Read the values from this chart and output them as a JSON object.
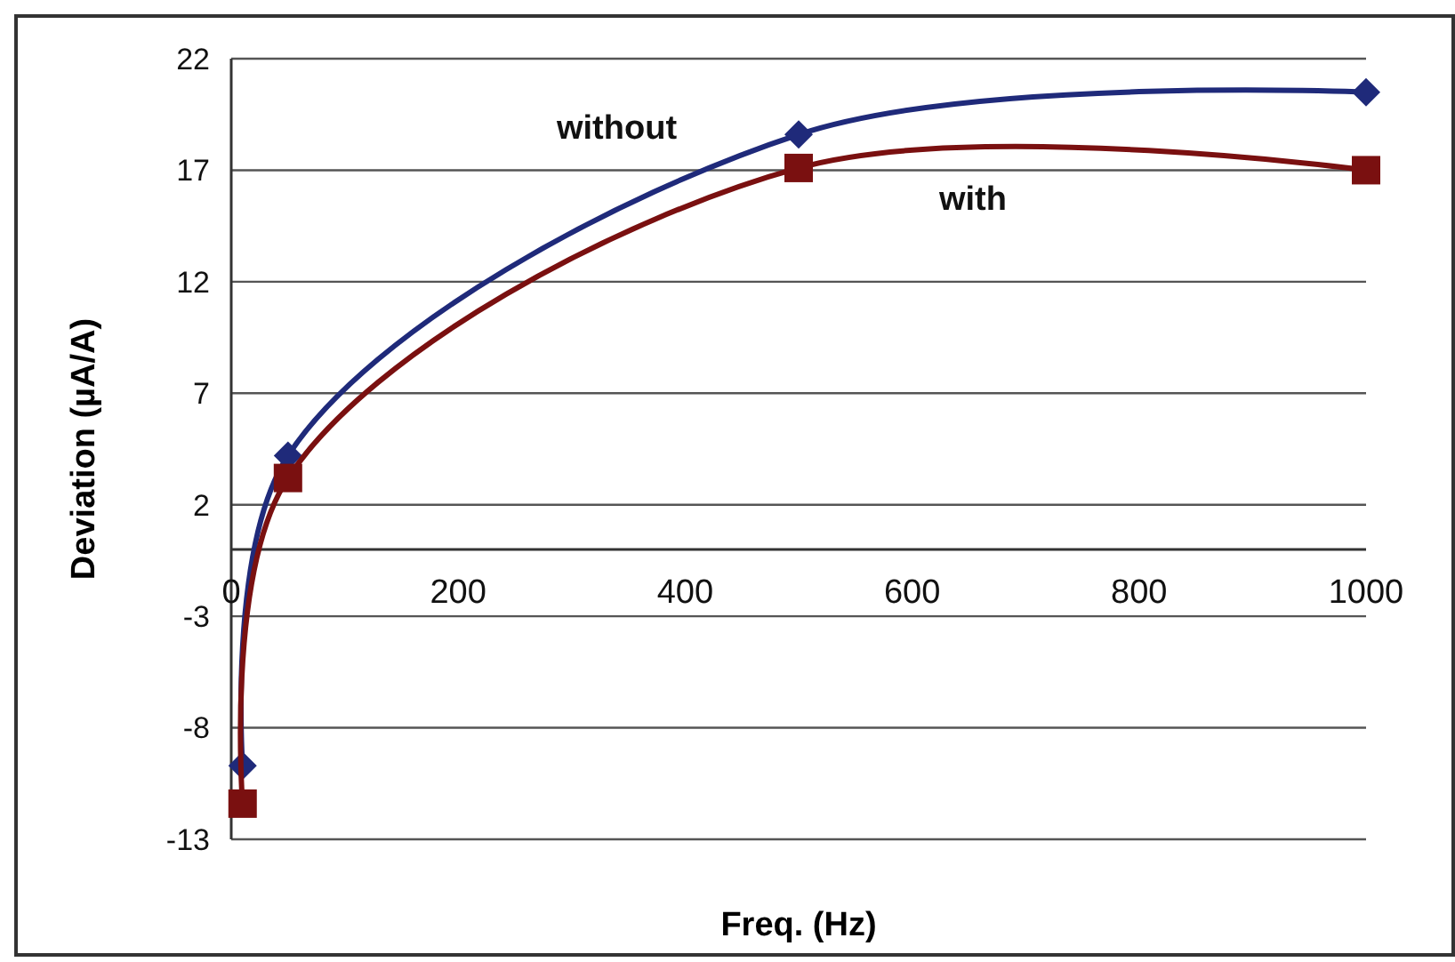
{
  "chart_data": {
    "type": "line",
    "xlabel": "Freq. (Hz)",
    "ylabel": "Deviation (µA/A)",
    "x": [
      10,
      50,
      500,
      1000
    ],
    "series": [
      {
        "name": "without",
        "color": "#1f2a7a",
        "values": [
          -9.7,
          4.2,
          18.6,
          20.5
        ],
        "marker": "diamond"
      },
      {
        "name": "with",
        "color": "#7a1010",
        "values": [
          -11.4,
          3.2,
          17.1,
          17.0
        ],
        "marker": "square"
      }
    ],
    "xlim": [
      0,
      1000
    ],
    "xticks": [
      0,
      200,
      400,
      600,
      800,
      1000
    ],
    "ylim": [
      -13,
      22
    ],
    "yticks": [
      -13,
      -8,
      -3,
      2,
      7,
      12,
      17,
      22
    ],
    "grid": "y"
  }
}
